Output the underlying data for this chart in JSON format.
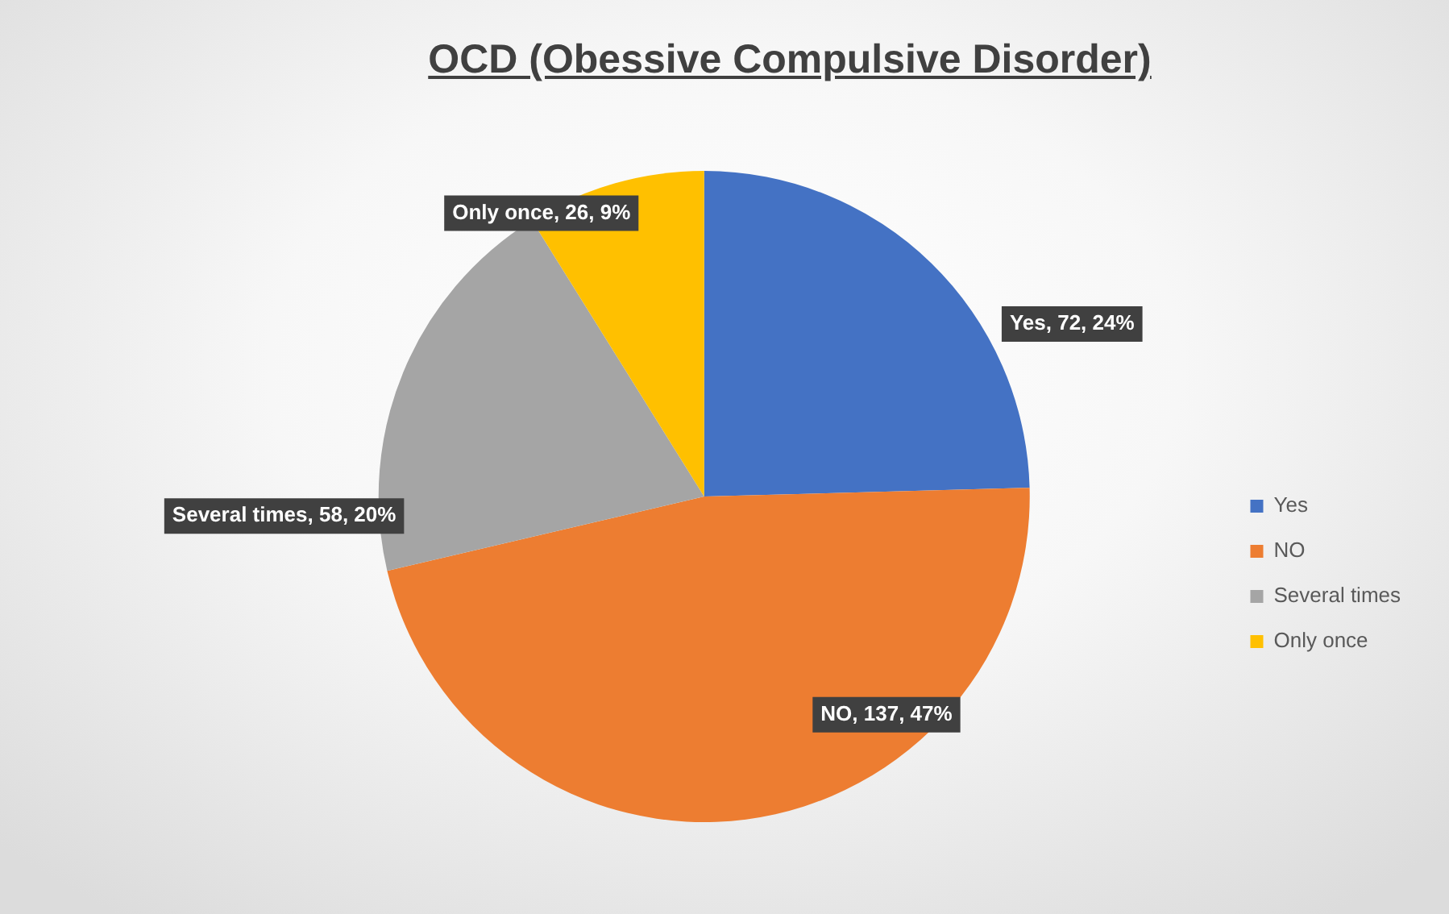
{
  "chart_data": {
    "type": "pie",
    "title": "OCD (Obessive Compulsive Disorder)",
    "categories": [
      "Yes",
      "NO",
      "Several times",
      "Only once"
    ],
    "values": [
      72,
      137,
      58,
      26
    ],
    "colors": [
      "#4472c4",
      "#ed7d31",
      "#a5a5a5",
      "#ffc000"
    ],
    "value_labels": [
      "Yes, 72, 24%",
      "NO, 137, 47%",
      "Several times, 58, 20%",
      "Only once, 26, 9%"
    ],
    "legend": "right"
  }
}
